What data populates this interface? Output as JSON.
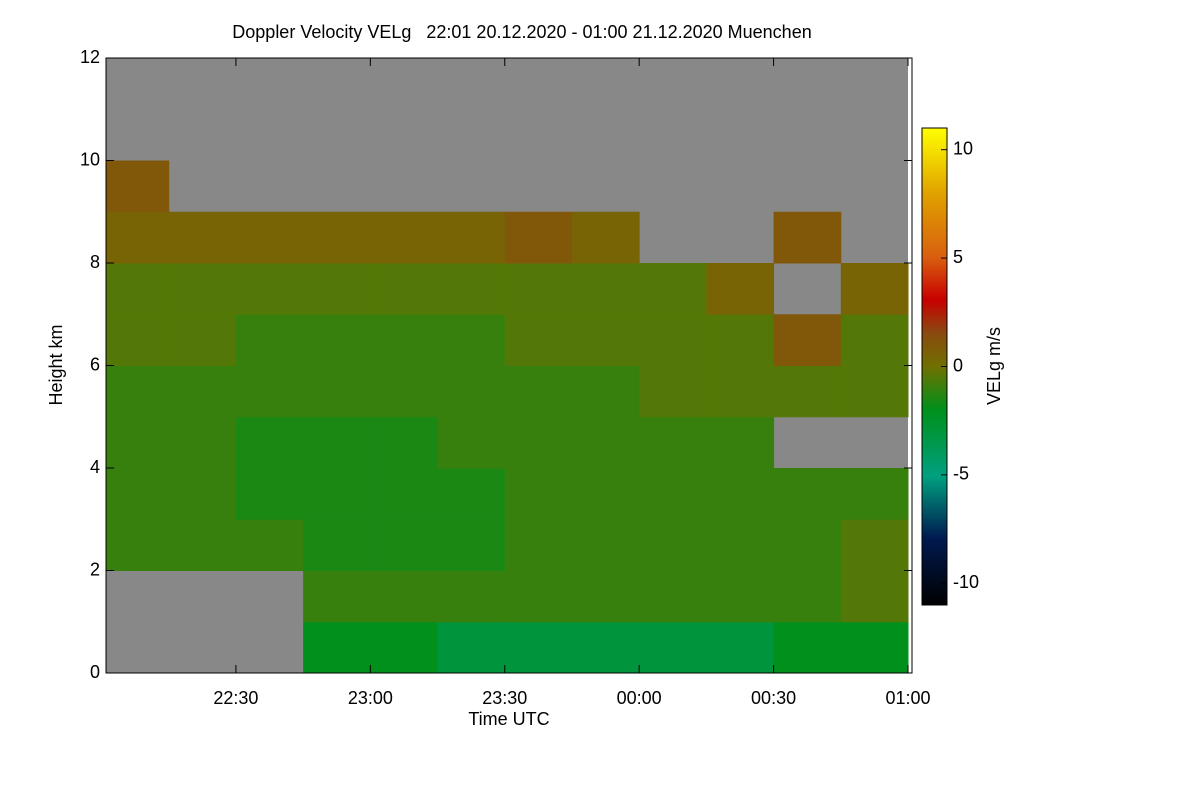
{
  "chart_data": {
    "type": "heatmap",
    "title": "Doppler Velocity VELg   22:01 20.12.2020 - 01:00 21.12.2020 Muenchen",
    "x_label": "Time UTC",
    "y_label": "Height km",
    "colorbar_label": "VELg m/s",
    "x_edges": [
      22.0167,
      22.25,
      22.5,
      22.75,
      23,
      23.25,
      23.5,
      23.75,
      24,
      24.25,
      24.5,
      24.75,
      25
    ],
    "y_edges": [
      0,
      1,
      2,
      3,
      4,
      5,
      6,
      7,
      8,
      9,
      10,
      11,
      12
    ],
    "z": [
      [
        null,
        null,
        null,
        -2,
        -2,
        -3,
        -3,
        -3,
        -3,
        -3,
        -2,
        -2
      ],
      [
        null,
        null,
        null,
        -1,
        -1,
        -1,
        -1,
        -1,
        -1,
        -1,
        -1,
        -0.5
      ],
      [
        -1,
        -1,
        -1,
        -1.5,
        -1.5,
        -1.5,
        -1,
        -1,
        -1,
        -1,
        -1,
        -0.5
      ],
      [
        -1,
        -1,
        -1.5,
        -1.5,
        -1.5,
        -1.5,
        -1,
        -1,
        -1,
        -1,
        -1,
        -1
      ],
      [
        -1,
        -1,
        -1.5,
        -1.5,
        -1.5,
        -1,
        -1,
        -1,
        -1,
        -1,
        null,
        null
      ],
      [
        -1,
        -1,
        -1,
        -1,
        -1,
        -1,
        -1,
        -1,
        -0.5,
        -0.5,
        -0.5,
        -0.5
      ],
      [
        -0.5,
        -0.5,
        -1,
        -1,
        -1,
        -1,
        -0.5,
        -0.5,
        -0.5,
        -0.5,
        1,
        -0.5
      ],
      [
        -0.5,
        -0.5,
        -0.5,
        -0.5,
        -0.5,
        -0.5,
        -0.5,
        -0.5,
        -0.5,
        0.5,
        null,
        0.5
      ],
      [
        0.5,
        0.5,
        0.5,
        0.5,
        0.5,
        0.5,
        1,
        0.5,
        null,
        null,
        1,
        null
      ],
      [
        1,
        null,
        null,
        null,
        null,
        null,
        null,
        null,
        null,
        null,
        null,
        null
      ],
      [
        null,
        null,
        null,
        null,
        null,
        null,
        null,
        null,
        null,
        null,
        null,
        null
      ],
      [
        null,
        null,
        null,
        null,
        null,
        null,
        null,
        null,
        null,
        null,
        null,
        null
      ]
    ],
    "missing_color": "#888888",
    "xlim": [
      22.0167,
      25
    ],
    "ylim": [
      0,
      12
    ],
    "xticks": [
      {
        "value": 22.5,
        "label": "22:30"
      },
      {
        "value": 23,
        "label": "23:00"
      },
      {
        "value": 23.5,
        "label": "23:30"
      },
      {
        "value": 24,
        "label": "00:00"
      },
      {
        "value": 24.5,
        "label": "00:30"
      },
      {
        "value": 25,
        "label": "01:00"
      }
    ],
    "yticks": [
      0,
      2,
      4,
      6,
      8,
      10,
      12
    ],
    "clim": [
      -11,
      11
    ],
    "cticks": [
      -10,
      -5,
      0,
      5,
      10
    ]
  }
}
